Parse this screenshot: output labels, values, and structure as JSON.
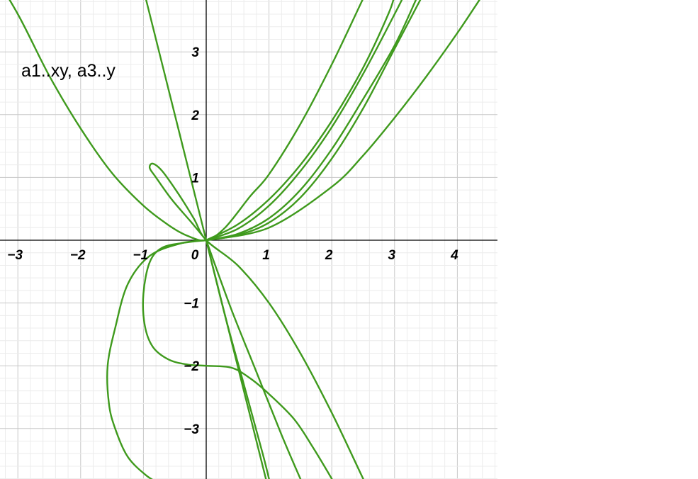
{
  "chart_data": {
    "type": "line",
    "annotation": "a1..xy, a3..y",
    "x_ticks": [
      "−3",
      "−2",
      "−1",
      "0",
      "1",
      "2",
      "3",
      "4"
    ],
    "y_ticks": [
      "3",
      "2",
      "1",
      "−1",
      "−2",
      "−3"
    ],
    "xlim": [
      -3.3,
      4.6
    ],
    "ylim": [
      -3.8,
      3.85
    ],
    "grid": true,
    "curve_color": "#3f9a1d",
    "series": [
      {
        "points": [
          [
            -3.6,
            4.6
          ],
          [
            -3,
            3.6
          ],
          [
            -2.5,
            2.62
          ],
          [
            -2,
            1.78
          ],
          [
            -1.5,
            1.07
          ],
          [
            -1,
            0.55
          ],
          [
            -0.6,
            0.24
          ],
          [
            -0.3,
            0.07
          ],
          [
            0,
            0
          ],
          [
            0.3,
            0.2
          ],
          [
            0.7,
            0.7
          ],
          [
            1,
            1.05
          ],
          [
            1.5,
            1.85
          ],
          [
            2,
            2.8
          ],
          [
            2.5,
            3.85
          ],
          [
            2.6,
            4.05
          ]
        ]
      },
      {
        "points": [
          [
            -1.0,
            4.0
          ],
          [
            -0.5,
            2.0
          ],
          [
            0,
            0
          ],
          [
            0.5,
            -2.0
          ],
          [
            0.95,
            -3.8
          ],
          [
            1.0,
            -4.0
          ]
        ]
      },
      {
        "points": [
          [
            0,
            0
          ],
          [
            -0.25,
            0.3
          ],
          [
            -0.55,
            0.65
          ],
          [
            -0.8,
            1.0
          ],
          [
            -0.9,
            1.15
          ],
          [
            -0.85,
            1.22
          ],
          [
            -0.7,
            1.1
          ],
          [
            -0.45,
            0.75
          ],
          [
            -0.2,
            0.35
          ],
          [
            0,
            0
          ],
          [
            0.5,
            -0.4
          ],
          [
            1,
            -1.0
          ],
          [
            1.5,
            -1.8
          ],
          [
            2,
            -2.75
          ],
          [
            2.5,
            -3.8
          ],
          [
            2.6,
            -4.0
          ]
        ]
      },
      {
        "points": [
          [
            0,
            0
          ],
          [
            -0.35,
            -0.04
          ],
          [
            -0.7,
            -0.12
          ],
          [
            -0.9,
            -0.35
          ],
          [
            -1.0,
            -0.85
          ],
          [
            -0.98,
            -1.35
          ],
          [
            -0.85,
            -1.7
          ],
          [
            -0.6,
            -1.9
          ],
          [
            -0.3,
            -1.98
          ],
          [
            0,
            -2.0
          ],
          [
            0.4,
            -2.03
          ],
          [
            0.7,
            -2.2
          ],
          [
            1.0,
            -2.45
          ],
          [
            1.4,
            -2.85
          ],
          [
            1.7,
            -3.3
          ],
          [
            2.0,
            -3.8
          ],
          [
            2.05,
            -3.9
          ]
        ]
      },
      {
        "points": [
          [
            0,
            0
          ],
          [
            -0.4,
            -0.05
          ],
          [
            -0.9,
            -0.25
          ],
          [
            -1.25,
            -0.7
          ],
          [
            -1.45,
            -1.4
          ],
          [
            -1.57,
            -2.0
          ],
          [
            -1.55,
            -2.6
          ],
          [
            -1.45,
            -3.0
          ],
          [
            -1.25,
            -3.45
          ],
          [
            -0.95,
            -3.75
          ],
          [
            -0.7,
            -3.9
          ]
        ]
      },
      {
        "points": [
          [
            0,
            0
          ],
          [
            0.3,
            -1.2
          ],
          [
            0.6,
            -2.3
          ],
          [
            0.9,
            -3.4
          ],
          [
            1.0,
            -3.8
          ],
          [
            1.05,
            -4.0
          ]
        ]
      },
      {
        "points": [
          [
            0,
            0
          ],
          [
            0.4,
            -1.1
          ],
          [
            0.8,
            -2.1
          ],
          [
            1.2,
            -3.1
          ],
          [
            1.5,
            -3.8
          ],
          [
            1.55,
            -3.9
          ]
        ]
      },
      {
        "points": [
          [
            0,
            0
          ],
          [
            0.5,
            0.18
          ],
          [
            1,
            0.55
          ],
          [
            1.5,
            1.1
          ],
          [
            2,
            1.8
          ],
          [
            2.5,
            2.65
          ],
          [
            3,
            3.6
          ],
          [
            3.15,
            3.9
          ]
        ]
      },
      {
        "points": [
          [
            0,
            0
          ],
          [
            0.5,
            0.1
          ],
          [
            1,
            0.35
          ],
          [
            1.5,
            0.8
          ],
          [
            2,
            1.45
          ],
          [
            2.5,
            2.25
          ],
          [
            3,
            3.1
          ],
          [
            3.35,
            3.85
          ]
        ]
      },
      {
        "points": [
          [
            0,
            0
          ],
          [
            0.5,
            0.08
          ],
          [
            1,
            0.28
          ],
          [
            1.5,
            0.68
          ],
          [
            2,
            1.3
          ],
          [
            2.5,
            2.1
          ],
          [
            3,
            3.05
          ],
          [
            3.5,
            4.0
          ]
        ]
      },
      {
        "points": [
          [
            0,
            0
          ],
          [
            1,
            0.2
          ],
          [
            2,
            0.85
          ],
          [
            2.5,
            1.35
          ],
          [
            3,
            1.95
          ],
          [
            3.5,
            2.6
          ],
          [
            4,
            3.3
          ],
          [
            4.4,
            3.9
          ]
        ]
      },
      {
        "points": [
          [
            0,
            0
          ],
          [
            0.5,
            0.25
          ],
          [
            1,
            0.65
          ],
          [
            1.5,
            1.2
          ],
          [
            2,
            1.9
          ],
          [
            2.5,
            2.75
          ],
          [
            2.9,
            3.6
          ],
          [
            3.0,
            3.9
          ]
        ]
      }
    ]
  }
}
